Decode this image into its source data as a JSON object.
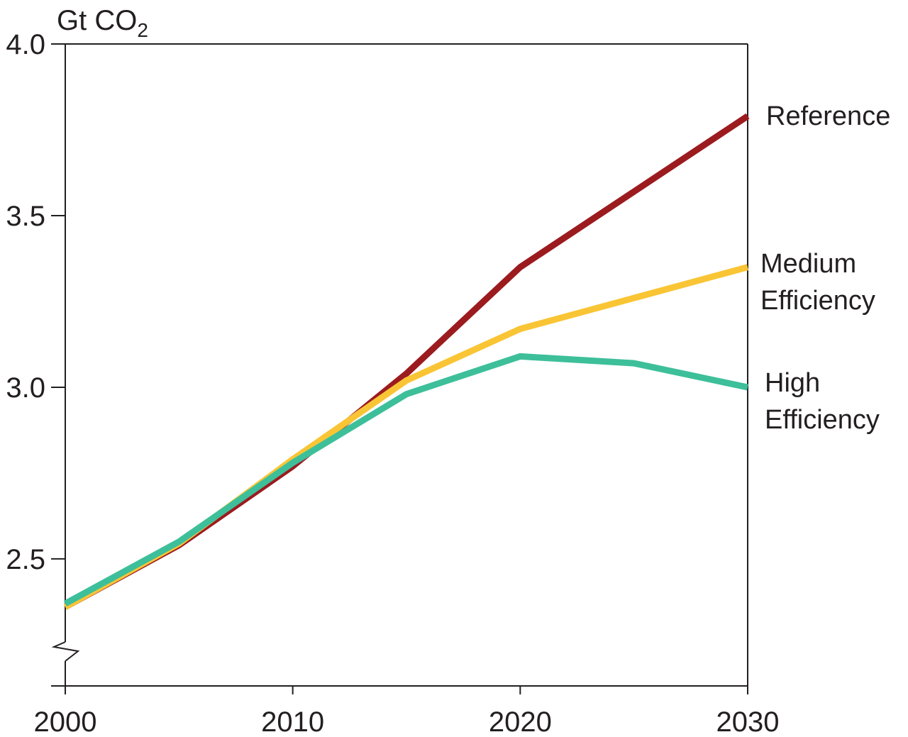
{
  "chart_data": {
    "type": "line",
    "ylabel": "Gt CO",
    "ylabel_subscript": "2",
    "x": [
      2000,
      2005,
      2010,
      2015,
      2020,
      2025,
      2030
    ],
    "xlim": [
      2000,
      2030
    ],
    "ylim": [
      2.13,
      4.0
    ],
    "y_axis_break": true,
    "x_ticks": [
      2000,
      2010,
      2020,
      2030
    ],
    "x_tick_labels": [
      "2000",
      "2010",
      "2020",
      "2030"
    ],
    "y_ticks": [
      2.5,
      3.0,
      3.5,
      4.0
    ],
    "y_tick_labels": [
      "2.5",
      "3.0",
      "3.5",
      "4.0"
    ],
    "grid": false,
    "legend": "inline labels at line ends (right)",
    "series": [
      {
        "name": "Reference",
        "label_lines": [
          "Reference"
        ],
        "color": "#9b1b1f",
        "values": [
          2.36,
          2.54,
          2.77,
          3.04,
          3.35,
          3.57,
          3.79
        ]
      },
      {
        "name": "Medium Efficiency",
        "label_lines": [
          "Medium",
          "Efficiency"
        ],
        "color": "#f9c535",
        "values": [
          2.36,
          2.545,
          2.79,
          3.02,
          3.17,
          3.26,
          3.35
        ]
      },
      {
        "name": "High Efficiency",
        "label_lines": [
          "High",
          "Efficiency"
        ],
        "color": "#3dbf9a",
        "values": [
          2.37,
          2.55,
          2.78,
          2.98,
          3.09,
          3.07,
          3.0
        ]
      }
    ]
  }
}
